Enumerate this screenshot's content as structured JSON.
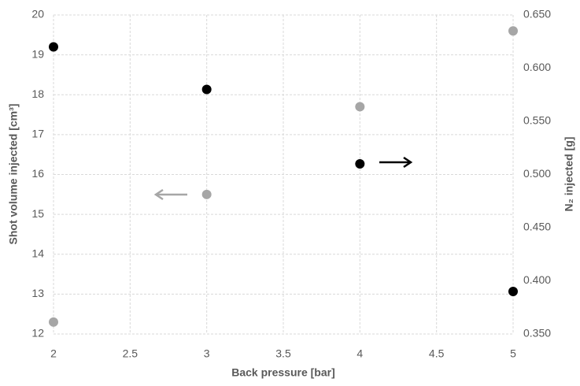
{
  "chart_data": {
    "type": "scatter",
    "x_label": "Back pressure [bar]",
    "y_label": "Shot volume injected [cm³]",
    "y2_label": "N₂ injected [g]",
    "x": [
      2,
      3,
      4,
      5
    ],
    "series": [
      {
        "color": "#a6a6a6",
        "values": [
          12.3,
          15.5,
          17.7,
          19.6
        ]
      },
      {
        "color": "#000000",
        "values": [
          0.62,
          0.58,
          0.51,
          0.39
        ],
        "axis": "y2"
      }
    ],
    "xlim": [
      2,
      5
    ],
    "xticks": [
      2,
      2.5,
      3,
      3.5,
      4,
      4.5,
      5
    ],
    "ylim": [
      12,
      20
    ],
    "yticks": [
      12,
      13,
      14,
      15,
      16,
      17,
      18,
      19,
      20
    ],
    "y2lim": [
      0.35,
      0.65
    ],
    "y2ticks": [
      {
        "value": 0.35,
        "label": "0.350"
      },
      {
        "value": 0.4,
        "label": "0.400"
      },
      {
        "value": 0.45,
        "label": "0.450"
      },
      {
        "value": 0.5,
        "label": "0.500"
      },
      {
        "value": 0.55,
        "label": "0.550"
      },
      {
        "value": 0.6,
        "label": "0.600"
      },
      {
        "value": 0.65,
        "label": "0.650"
      }
    ],
    "grid": true
  }
}
